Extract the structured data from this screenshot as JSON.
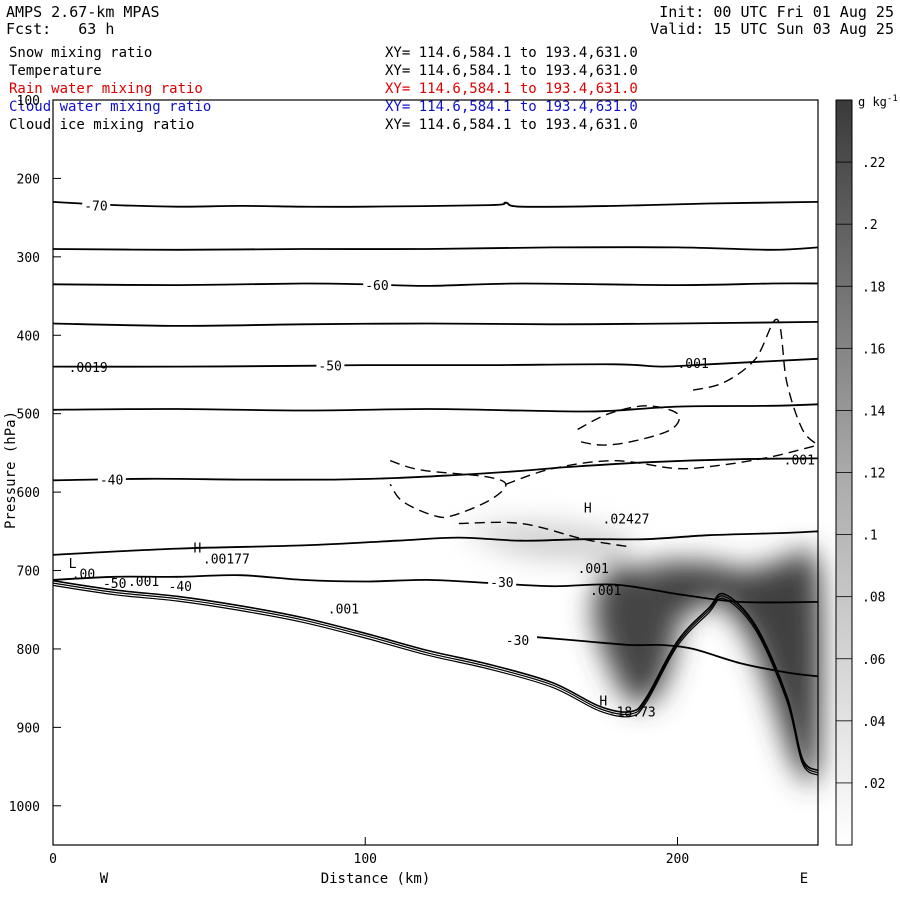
{
  "header": {
    "model": "AMPS 2.67-km MPAS",
    "forecast": "Fcst:   63 h",
    "init": "Init: 00 UTC Fri 01 Aug 25",
    "valid": "Valid: 15 UTC Sun 03 Aug 25"
  },
  "legend": [
    {
      "name": "Snow mixing ratio",
      "xy": "XY= 114.6,584.1 to 193.4,631.0",
      "color": "#000000"
    },
    {
      "name": "Temperature",
      "xy": "XY= 114.6,584.1 to 193.4,631.0",
      "color": "#000000"
    },
    {
      "name": "Rain water mixing ratio",
      "xy": "XY= 114.6,584.1 to 193.4,631.0",
      "color": "#e00000"
    },
    {
      "name": "Cloud water mixing ratio",
      "xy": "XY= 114.6,584.1 to 193.4,631.0",
      "color": "#1010d0"
    },
    {
      "name": "Cloud ice mixing ratio",
      "xy": "XY= 114.6,584.1 to 193.4,631.0",
      "color": "#000000"
    }
  ],
  "chart_data": {
    "type": "heatmap",
    "xlabel": "Distance (km)",
    "ylabel": "Pressure (hPa)",
    "xlim": [
      0,
      245
    ],
    "ylim": [
      1050,
      100
    ],
    "x_ticks": [
      "0",
      "100",
      "200"
    ],
    "y_ticks": [
      "100",
      "200",
      "300",
      "400",
      "500",
      "600",
      "700",
      "800",
      "900",
      "1000"
    ],
    "left_end_label": "W",
    "right_end_label": "E",
    "colorbar": {
      "unit": "g kg",
      "unit_exp": "-1",
      "ticks": [
        ".22",
        ".2",
        ".18",
        ".16",
        ".14",
        ".12",
        ".1",
        ".08",
        ".06",
        ".04",
        ".02"
      ],
      "range": [
        0,
        0.24
      ]
    },
    "temperature_isotherms_C": [
      {
        "level": -70,
        "label": "-70",
        "points": [
          [
            0,
            230
          ],
          [
            20,
            234
          ],
          [
            40,
            236
          ],
          [
            60,
            235
          ],
          [
            80,
            236
          ],
          [
            100,
            236
          ],
          [
            140,
            234
          ],
          [
            145,
            231
          ],
          [
            150,
            236
          ],
          [
            180,
            235
          ],
          [
            210,
            232
          ],
          [
            245,
            230
          ]
        ]
      },
      {
        "level": -70,
        "label": "",
        "points": [
          [
            0,
            290
          ],
          [
            40,
            291
          ],
          [
            80,
            290
          ],
          [
            120,
            290
          ],
          [
            160,
            288
          ],
          [
            200,
            288
          ],
          [
            230,
            291
          ],
          [
            245,
            288
          ]
        ]
      },
      {
        "level": -60,
        "label": "-60",
        "points": [
          [
            0,
            335
          ],
          [
            40,
            336
          ],
          [
            80,
            334
          ],
          [
            100,
            335
          ],
          [
            120,
            337
          ],
          [
            150,
            334
          ],
          [
            200,
            336
          ],
          [
            230,
            334
          ],
          [
            245,
            334
          ]
        ]
      },
      {
        "level": -60,
        "label": "",
        "points": [
          [
            0,
            385
          ],
          [
            40,
            388
          ],
          [
            80,
            386
          ],
          [
            120,
            385
          ],
          [
            160,
            386
          ],
          [
            200,
            385
          ],
          [
            245,
            383
          ]
        ]
      },
      {
        "level": -50,
        "label": "-50",
        "points": [
          [
            0,
            440
          ],
          [
            40,
            440
          ],
          [
            80,
            439
          ],
          [
            100,
            438
          ],
          [
            140,
            438
          ],
          [
            180,
            437
          ],
          [
            195,
            440
          ],
          [
            210,
            437
          ],
          [
            245,
            430
          ]
        ]
      },
      {
        "level": -50,
        "label": "",
        "points": [
          [
            0,
            495
          ],
          [
            40,
            494
          ],
          [
            80,
            496
          ],
          [
            120,
            494
          ],
          [
            150,
            496
          ],
          [
            175,
            497
          ],
          [
            200,
            491
          ],
          [
            230,
            490
          ],
          [
            245,
            488
          ]
        ]
      },
      {
        "level": -40,
        "label": "-40",
        "points": [
          [
            0,
            585
          ],
          [
            30,
            583
          ],
          [
            60,
            584
          ],
          [
            90,
            584
          ],
          [
            110,
            582
          ],
          [
            130,
            578
          ],
          [
            150,
            573
          ],
          [
            165,
            568
          ],
          [
            190,
            562
          ],
          [
            220,
            558
          ],
          [
            245,
            557
          ]
        ]
      },
      {
        "level": -40,
        "label": "",
        "points": [
          [
            0,
            680
          ],
          [
            40,
            672
          ],
          [
            80,
            668
          ],
          [
            110,
            662
          ],
          [
            130,
            658
          ],
          [
            150,
            662
          ],
          [
            170,
            660
          ],
          [
            190,
            660
          ],
          [
            210,
            655
          ],
          [
            235,
            652
          ],
          [
            245,
            650
          ]
        ]
      },
      {
        "level": -30,
        "label": "-30",
        "points": [
          [
            0,
            712
          ],
          [
            20,
            708
          ],
          [
            40,
            708
          ],
          [
            60,
            706
          ],
          [
            80,
            712
          ],
          [
            100,
            714
          ],
          [
            120,
            712
          ],
          [
            140,
            716
          ],
          [
            160,
            720
          ],
          [
            180,
            718
          ],
          [
            200,
            730
          ],
          [
            220,
            740
          ],
          [
            245,
            740
          ]
        ]
      },
      {
        "level": -30,
        "label": "-30",
        "points": [
          [
            155,
            785
          ],
          [
            170,
            790
          ],
          [
            185,
            795
          ],
          [
            195,
            795
          ],
          [
            205,
            800
          ],
          [
            220,
            818
          ],
          [
            235,
            830
          ],
          [
            245,
            835
          ]
        ]
      }
    ],
    "terrain_surface_hPa": [
      [
        0,
        713
      ],
      [
        20,
        725
      ],
      [
        40,
        733
      ],
      [
        60,
        745
      ],
      [
        80,
        760
      ],
      [
        100,
        780
      ],
      [
        120,
        802
      ],
      [
        140,
        820
      ],
      [
        160,
        843
      ],
      [
        175,
        873
      ],
      [
        185,
        880
      ],
      [
        190,
        862
      ],
      [
        200,
        790
      ],
      [
        210,
        748
      ],
      [
        215,
        730
      ],
      [
        225,
        770
      ],
      [
        235,
        860
      ],
      [
        240,
        940
      ],
      [
        245,
        955
      ]
    ],
    "snow_mixing_ratio_max": {
      "x": 215,
      "p": 780,
      "value": 0.24
    },
    "contour_labels": [
      {
        "text": "L",
        "x": 5,
        "p": 697
      },
      {
        "text": ".00",
        "x": 6,
        "p": 710
      },
      {
        "text": "H",
        "x": 45,
        "p": 677
      },
      {
        "text": ".00177",
        "x": 48,
        "p": 691
      },
      {
        "text": "H",
        "x": 170,
        "p": 626
      },
      {
        "text": ".02427",
        "x": 176,
        "p": 640
      },
      {
        "text": "H",
        "x": 175,
        "p": 872
      },
      {
        "text": "-18.73",
        "x": 178,
        "p": 886
      },
      {
        "text": ".0019",
        "x": 5,
        "p": 447
      },
      {
        "text": ".001",
        "x": 200,
        "p": 442
      },
      {
        "text": ".001",
        "x": 234,
        "p": 565
      },
      {
        "text": ".001",
        "x": 168,
        "p": 703
      },
      {
        "text": ".001",
        "x": 172,
        "p": 731
      },
      {
        "text": ".001",
        "x": 88,
        "p": 755
      },
      {
        "text": "-50",
        "x": 16,
        "p": 722
      },
      {
        "text": ".001",
        "x": 24,
        "p": 720
      },
      {
        "text": "-40",
        "x": 37,
        "p": 726
      }
    ]
  }
}
